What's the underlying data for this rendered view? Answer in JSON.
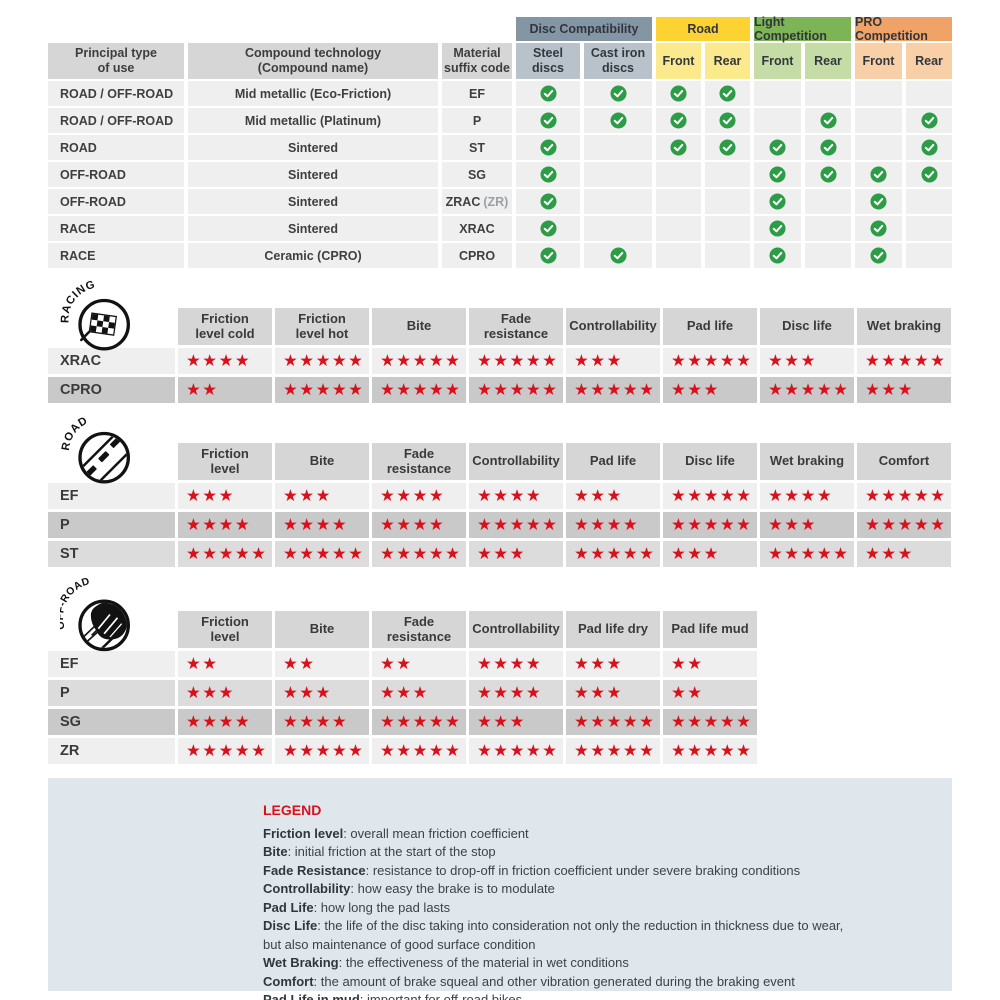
{
  "colors": {
    "star_red": "#d8111c",
    "check_green": "#2d9c47",
    "header_gray": "#d5d6d5",
    "row_light": "#efefef",
    "row_medium": "#dcdcdc",
    "row_dark": "#c9c9c9",
    "legend_bg": "#dfe7ec"
  },
  "compat_table": {
    "col_headers": [
      "Principal type\nof use",
      "Compound technology\n(Compound name)",
      "Material\nsuffix code"
    ],
    "groups": [
      {
        "label": "Disc Compatibility",
        "color": "#8495a3",
        "sub_color": "#b7c2ca",
        "subs": [
          "Steel\ndiscs",
          "Cast iron\ndiscs"
        ]
      },
      {
        "label": "Road",
        "color": "#fdd233",
        "sub_color": "#fbe98e",
        "subs": [
          "Front",
          "Rear"
        ]
      },
      {
        "label": "Light Competition",
        "color": "#7db456",
        "sub_color": "#c6dca6",
        "subs": [
          "Front",
          "Rear"
        ]
      },
      {
        "label": "PRO Competition",
        "color": "#f1a266",
        "sub_color": "#f8cfa7",
        "subs": [
          "Front",
          "Rear"
        ]
      }
    ],
    "rows": [
      {
        "use": "ROAD / OFF-ROAD",
        "tech": "Mid metallic (Eco-Friction)",
        "code": "EF",
        "code_suffix": "",
        "checks": [
          1,
          1,
          1,
          1,
          0,
          0,
          0,
          0
        ]
      },
      {
        "use": "ROAD / OFF-ROAD",
        "tech": "Mid metallic (Platinum)",
        "code": "P",
        "code_suffix": "",
        "checks": [
          1,
          1,
          1,
          1,
          0,
          1,
          0,
          1
        ]
      },
      {
        "use": "ROAD",
        "tech": "Sintered",
        "code": "ST",
        "code_suffix": "",
        "checks": [
          1,
          0,
          1,
          1,
          1,
          1,
          0,
          1
        ]
      },
      {
        "use": "OFF-ROAD",
        "tech": "Sintered",
        "code": "SG",
        "code_suffix": "",
        "checks": [
          1,
          0,
          0,
          0,
          1,
          1,
          1,
          1
        ]
      },
      {
        "use": "OFF-ROAD",
        "tech": "Sintered",
        "code": "ZRAC",
        "code_suffix": "(ZR)",
        "checks": [
          1,
          0,
          0,
          0,
          1,
          0,
          1,
          0
        ]
      },
      {
        "use": "RACE",
        "tech": "Sintered",
        "code": "XRAC",
        "code_suffix": "",
        "checks": [
          1,
          0,
          0,
          0,
          1,
          0,
          1,
          0
        ]
      },
      {
        "use": "RACE",
        "tech": "Ceramic (CPRO)",
        "code": "CPRO",
        "code_suffix": "",
        "checks": [
          1,
          1,
          0,
          0,
          1,
          0,
          1,
          0
        ]
      }
    ]
  },
  "rating_tables": [
    {
      "id": "racing",
      "icon_label": "RACING",
      "columns": [
        "Friction\nlevel cold",
        "Friction\nlevel hot",
        "Bite",
        "Fade\nresistance",
        "Controllability",
        "Pad life",
        "Disc life",
        "Wet braking"
      ],
      "rows": [
        {
          "label": "XRAC",
          "shade": "light",
          "stars": [
            4,
            5,
            5,
            5,
            3,
            5,
            3,
            5
          ]
        },
        {
          "label": "CPRO",
          "shade": "dark",
          "stars": [
            2,
            5,
            5,
            5,
            5,
            3,
            5,
            3
          ]
        }
      ]
    },
    {
      "id": "road",
      "icon_label": "ROAD",
      "columns": [
        "Friction\nlevel",
        "Bite",
        "Fade\nresistance",
        "Controllability",
        "Pad life",
        "Disc life",
        "Wet braking",
        "Comfort"
      ],
      "rows": [
        {
          "label": "EF",
          "shade": "light",
          "stars": [
            3,
            3,
            4,
            4,
            3,
            5,
            4,
            5
          ]
        },
        {
          "label": "P",
          "shade": "dark",
          "stars": [
            4,
            4,
            4,
            5,
            4,
            5,
            3,
            5
          ]
        },
        {
          "label": "ST",
          "shade": "medium",
          "stars": [
            5,
            5,
            5,
            3,
            5,
            3,
            5,
            3
          ]
        }
      ]
    },
    {
      "id": "offroad",
      "icon_label": "OFF-ROAD",
      "columns": [
        "Friction\nlevel",
        "Bite",
        "Fade\nresistance",
        "Controllability",
        "Pad life dry",
        "Pad life mud"
      ],
      "rows": [
        {
          "label": "EF",
          "shade": "light",
          "stars": [
            2,
            2,
            2,
            4,
            3,
            2
          ]
        },
        {
          "label": "P",
          "shade": "medium",
          "stars": [
            3,
            3,
            3,
            4,
            3,
            2
          ]
        },
        {
          "label": "SG",
          "shade": "dark",
          "stars": [
            4,
            4,
            5,
            3,
            5,
            5
          ]
        },
        {
          "label": "ZR",
          "shade": "light",
          "stars": [
            5,
            5,
            5,
            5,
            5,
            5
          ]
        }
      ]
    }
  ],
  "legend": {
    "title": "LEGEND",
    "lines": [
      {
        "term": "Friction level",
        "desc": "overall mean friction coefficient"
      },
      {
        "term": "Bite",
        "desc": "initial friction at the start of the stop"
      },
      {
        "term": "Fade Resistance",
        "desc": "resistance to drop-off in friction coefficient under severe braking conditions"
      },
      {
        "term": "Controllability",
        "desc": "how easy the brake is to modulate"
      },
      {
        "term": "Pad Life",
        "desc": "how long the pad lasts"
      },
      {
        "term": "Disc Life",
        "desc": "the life of the disc taking into consideration not only the reduction in thickness due to wear,"
      },
      {
        "term": "",
        "desc": "but also maintenance of good surface condition"
      },
      {
        "term": "Wet Braking",
        "desc": "the effectiveness of the material in wet conditions"
      },
      {
        "term": "Comfort",
        "desc": "the amount of brake squeal and other vibration generated during the braking event"
      },
      {
        "term": "Pad Life in mud",
        "desc": "important for off-road bikes"
      }
    ]
  }
}
